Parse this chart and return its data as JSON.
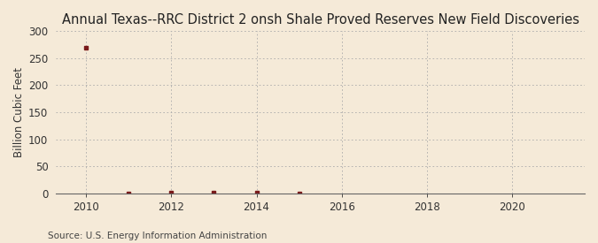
{
  "title": "Annual Texas--RRC District 2 onsh Shale Proved Reserves New Field Discoveries",
  "ylabel": "Billion Cubic Feet",
  "source": "Source: U.S. Energy Information Administration",
  "years": [
    2010,
    2011,
    2012,
    2013,
    2014,
    2015
  ],
  "values": [
    270.0,
    0.3,
    0.8,
    0.4,
    0.6,
    0.3
  ],
  "xlim": [
    2009.3,
    2021.7
  ],
  "ylim": [
    0,
    300
  ],
  "yticks": [
    0,
    50,
    100,
    150,
    200,
    250,
    300
  ],
  "xticks": [
    2010,
    2012,
    2014,
    2016,
    2018,
    2020
  ],
  "background_color": "#f5ead8",
  "grid_color": "#aaaaaa",
  "marker_color": "#7a1a1a",
  "title_fontsize": 10.5,
  "label_fontsize": 8.5,
  "tick_fontsize": 8.5,
  "source_fontsize": 7.5
}
